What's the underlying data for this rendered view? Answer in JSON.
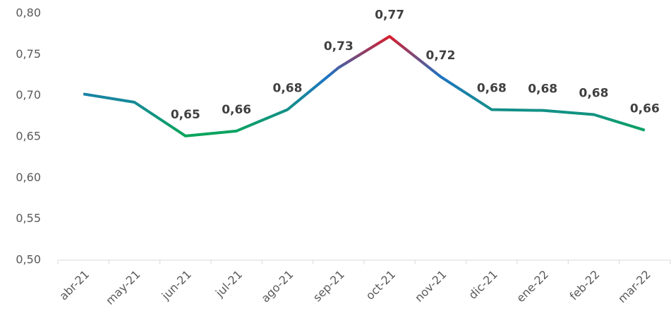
{
  "chart_data": {
    "type": "line",
    "categories": [
      "abr-21",
      "may-21",
      "jun-21",
      "jul-21",
      "ago-21",
      "sep-21",
      "oct-21",
      "nov-21",
      "dic-21",
      "ene-22",
      "feb-22",
      "mar-22"
    ],
    "series": [
      {
        "colors": [
          "#0aa65a",
          "#1f73c4",
          "#d81e2c"
        ],
        "values": [
          0.702,
          0.692,
          0.651,
          0.657,
          0.683,
          0.734,
          0.772,
          0.723,
          0.683,
          0.682,
          0.677,
          0.658
        ],
        "value_labels": [
          null,
          null,
          "0,65",
          "0,66",
          "0,68",
          "0,73",
          "0,77",
          "0,72",
          "0,68",
          "0,68",
          "0,68",
          "0,66"
        ]
      }
    ],
    "ylim": [
      0.5,
      0.8
    ],
    "yticks": [
      {
        "value": 0.5,
        "label": "0,50"
      },
      {
        "value": 0.55,
        "label": "0,55"
      },
      {
        "value": 0.6,
        "label": "0,60"
      },
      {
        "value": 0.65,
        "label": "0,65"
      },
      {
        "value": 0.7,
        "label": "0,70"
      },
      {
        "value": 0.75,
        "label": "0,75"
      },
      {
        "value": 0.8,
        "label": "0,80"
      }
    ],
    "grid": false
  }
}
